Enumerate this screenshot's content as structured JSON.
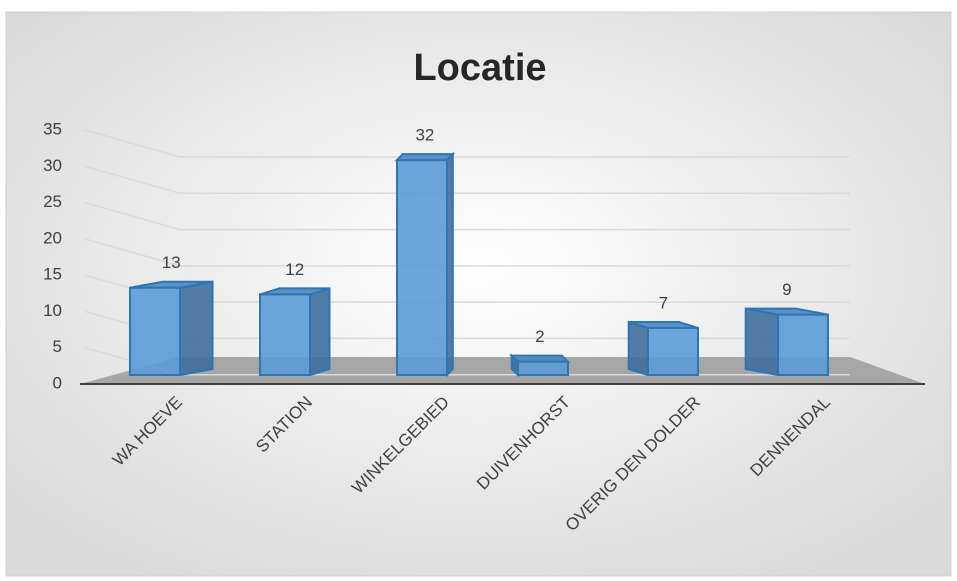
{
  "chart_data": {
    "type": "bar",
    "title": "Locatie",
    "categories": [
      "WA HOEVE",
      "STATION",
      "WINKELGEBIED",
      "DUIVENHORST",
      "OVERIG DEN DOLDER",
      "DENNENDAL"
    ],
    "values": [
      13,
      12,
      32,
      2,
      7,
      9
    ],
    "color": "#5b9bd5",
    "ylim": [
      0,
      35
    ],
    "yticks": [
      0,
      5,
      10,
      15,
      20,
      25,
      30,
      35
    ],
    "grid": true
  }
}
